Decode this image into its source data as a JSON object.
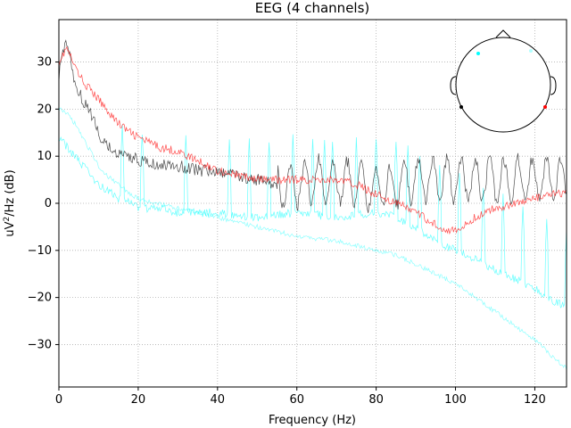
{
  "chart_data": {
    "type": "line",
    "title": "EEG (4 channels)",
    "xlabel": "Frequency (Hz)",
    "ylabel_base": "uV",
    "ylabel_sup": "2",
    "ylabel_rest": "/Hz (dB)",
    "xlim": [
      0,
      128
    ],
    "ylim": [
      -39,
      39
    ],
    "x_ticks": [
      0,
      20,
      40,
      60,
      80,
      100,
      120
    ],
    "y_ticks": [
      -30,
      -20,
      -10,
      0,
      10,
      20,
      30
    ],
    "grid": true,
    "grid_style": "dotted",
    "line_noise_peaks_hz": [
      16,
      21,
      32,
      43,
      48,
      53,
      59,
      64,
      67,
      69,
      75,
      80,
      85,
      88,
      91,
      96,
      101,
      107,
      112,
      117,
      123,
      128
    ],
    "series": [
      {
        "color": "#ff0000",
        "opacity": 0.7,
        "x": [
          0,
          2,
          4,
          6,
          8,
          10,
          12,
          15,
          18,
          20,
          25,
          30,
          35,
          40,
          45,
          50,
          55,
          60,
          65,
          70,
          75,
          80,
          85,
          88,
          92,
          96,
          100,
          102,
          105,
          110,
          115,
          120,
          125,
          128
        ],
        "y": [
          30,
          33,
          29,
          26,
          24,
          22,
          20,
          17,
          15,
          14,
          12,
          11,
          9,
          7,
          6,
          5,
          5,
          5,
          5,
          5,
          4,
          2,
          0,
          -1,
          -3,
          -5,
          -6,
          -5,
          -3,
          -1,
          0,
          1,
          2,
          2
        ]
      },
      {
        "color": "#000000",
        "opacity": 0.7,
        "x": [
          0,
          1,
          2,
          3,
          4,
          6,
          8,
          10,
          12,
          14,
          16,
          18,
          20,
          25,
          30,
          35,
          40,
          45,
          50,
          55,
          60,
          65,
          70,
          75,
          80,
          85,
          90,
          95,
          100,
          105,
          110,
          115,
          120,
          125,
          128
        ],
        "y": [
          27,
          33,
          34,
          30,
          26,
          22,
          19,
          15,
          12,
          11,
          10,
          10,
          9,
          8,
          8,
          7,
          7,
          6,
          5,
          4,
          4,
          5,
          5,
          4,
          3,
          4,
          5,
          5,
          5,
          5,
          5,
          5,
          5,
          5,
          5
        ]
      },
      {
        "color": "#00ffff",
        "opacity": 0.6,
        "x": [
          0,
          2,
          4,
          6,
          8,
          10,
          12,
          15,
          18,
          20,
          25,
          30,
          40,
          50,
          60,
          70,
          80,
          85,
          90,
          95,
          100,
          105,
          110,
          115,
          120,
          125,
          128
        ],
        "y": [
          14,
          12,
          10,
          8,
          6,
          4,
          3,
          1,
          0,
          -1,
          -1,
          -2,
          -2,
          -3,
          -2,
          -3,
          -2,
          -3,
          -5,
          -8,
          -10,
          -12,
          -14,
          -16,
          -18,
          -21,
          -22
        ]
      },
      {
        "color": "#00ffff",
        "opacity": 0.45,
        "x": [
          0,
          2,
          4,
          6,
          8,
          10,
          12,
          15,
          18,
          20,
          25,
          30,
          40,
          50,
          60,
          70,
          80,
          85,
          90,
          95,
          100,
          105,
          110,
          115,
          120,
          125,
          128
        ],
        "y": [
          20,
          19,
          17,
          14,
          11,
          8,
          6,
          4,
          2,
          1,
          0,
          -1,
          -3,
          -5,
          -7,
          -8,
          -10,
          -11,
          -13,
          -15,
          -17,
          -20,
          -23,
          -26,
          -29,
          -33,
          -35
        ]
      }
    ],
    "sensor_inset": {
      "sensors": [
        {
          "color": "#00ffff"
        },
        {
          "color": "#00ffff"
        },
        {
          "color": "#000000"
        },
        {
          "color": "#ff0000"
        }
      ]
    }
  }
}
